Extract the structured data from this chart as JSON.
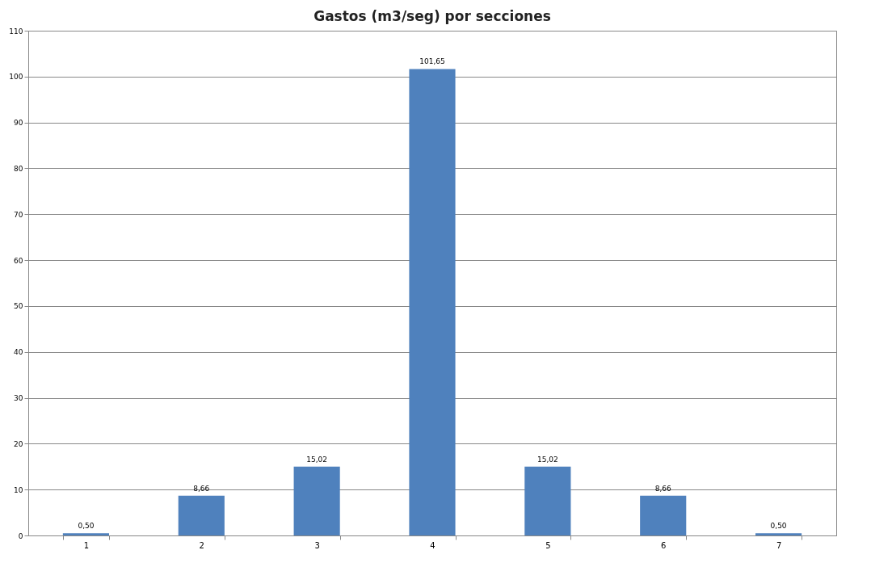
{
  "chart_data": {
    "type": "bar",
    "title": "Gastos (m3/seg) por secciones",
    "categories": [
      "1",
      "2",
      "3",
      "4",
      "5",
      "6",
      "7"
    ],
    "values": [
      0.5,
      8.66,
      15.02,
      101.65,
      15.02,
      8.66,
      0.5
    ],
    "value_labels": [
      "0,50",
      "8,66",
      "15,02",
      "101,65",
      "15,02",
      "8,66",
      "0,50"
    ],
    "color": "#4f81bd",
    "ylim": [
      0,
      110
    ],
    "yticks": [
      0,
      10,
      20,
      30,
      40,
      50,
      60,
      70,
      80,
      90,
      100,
      110
    ],
    "grid": "y"
  }
}
